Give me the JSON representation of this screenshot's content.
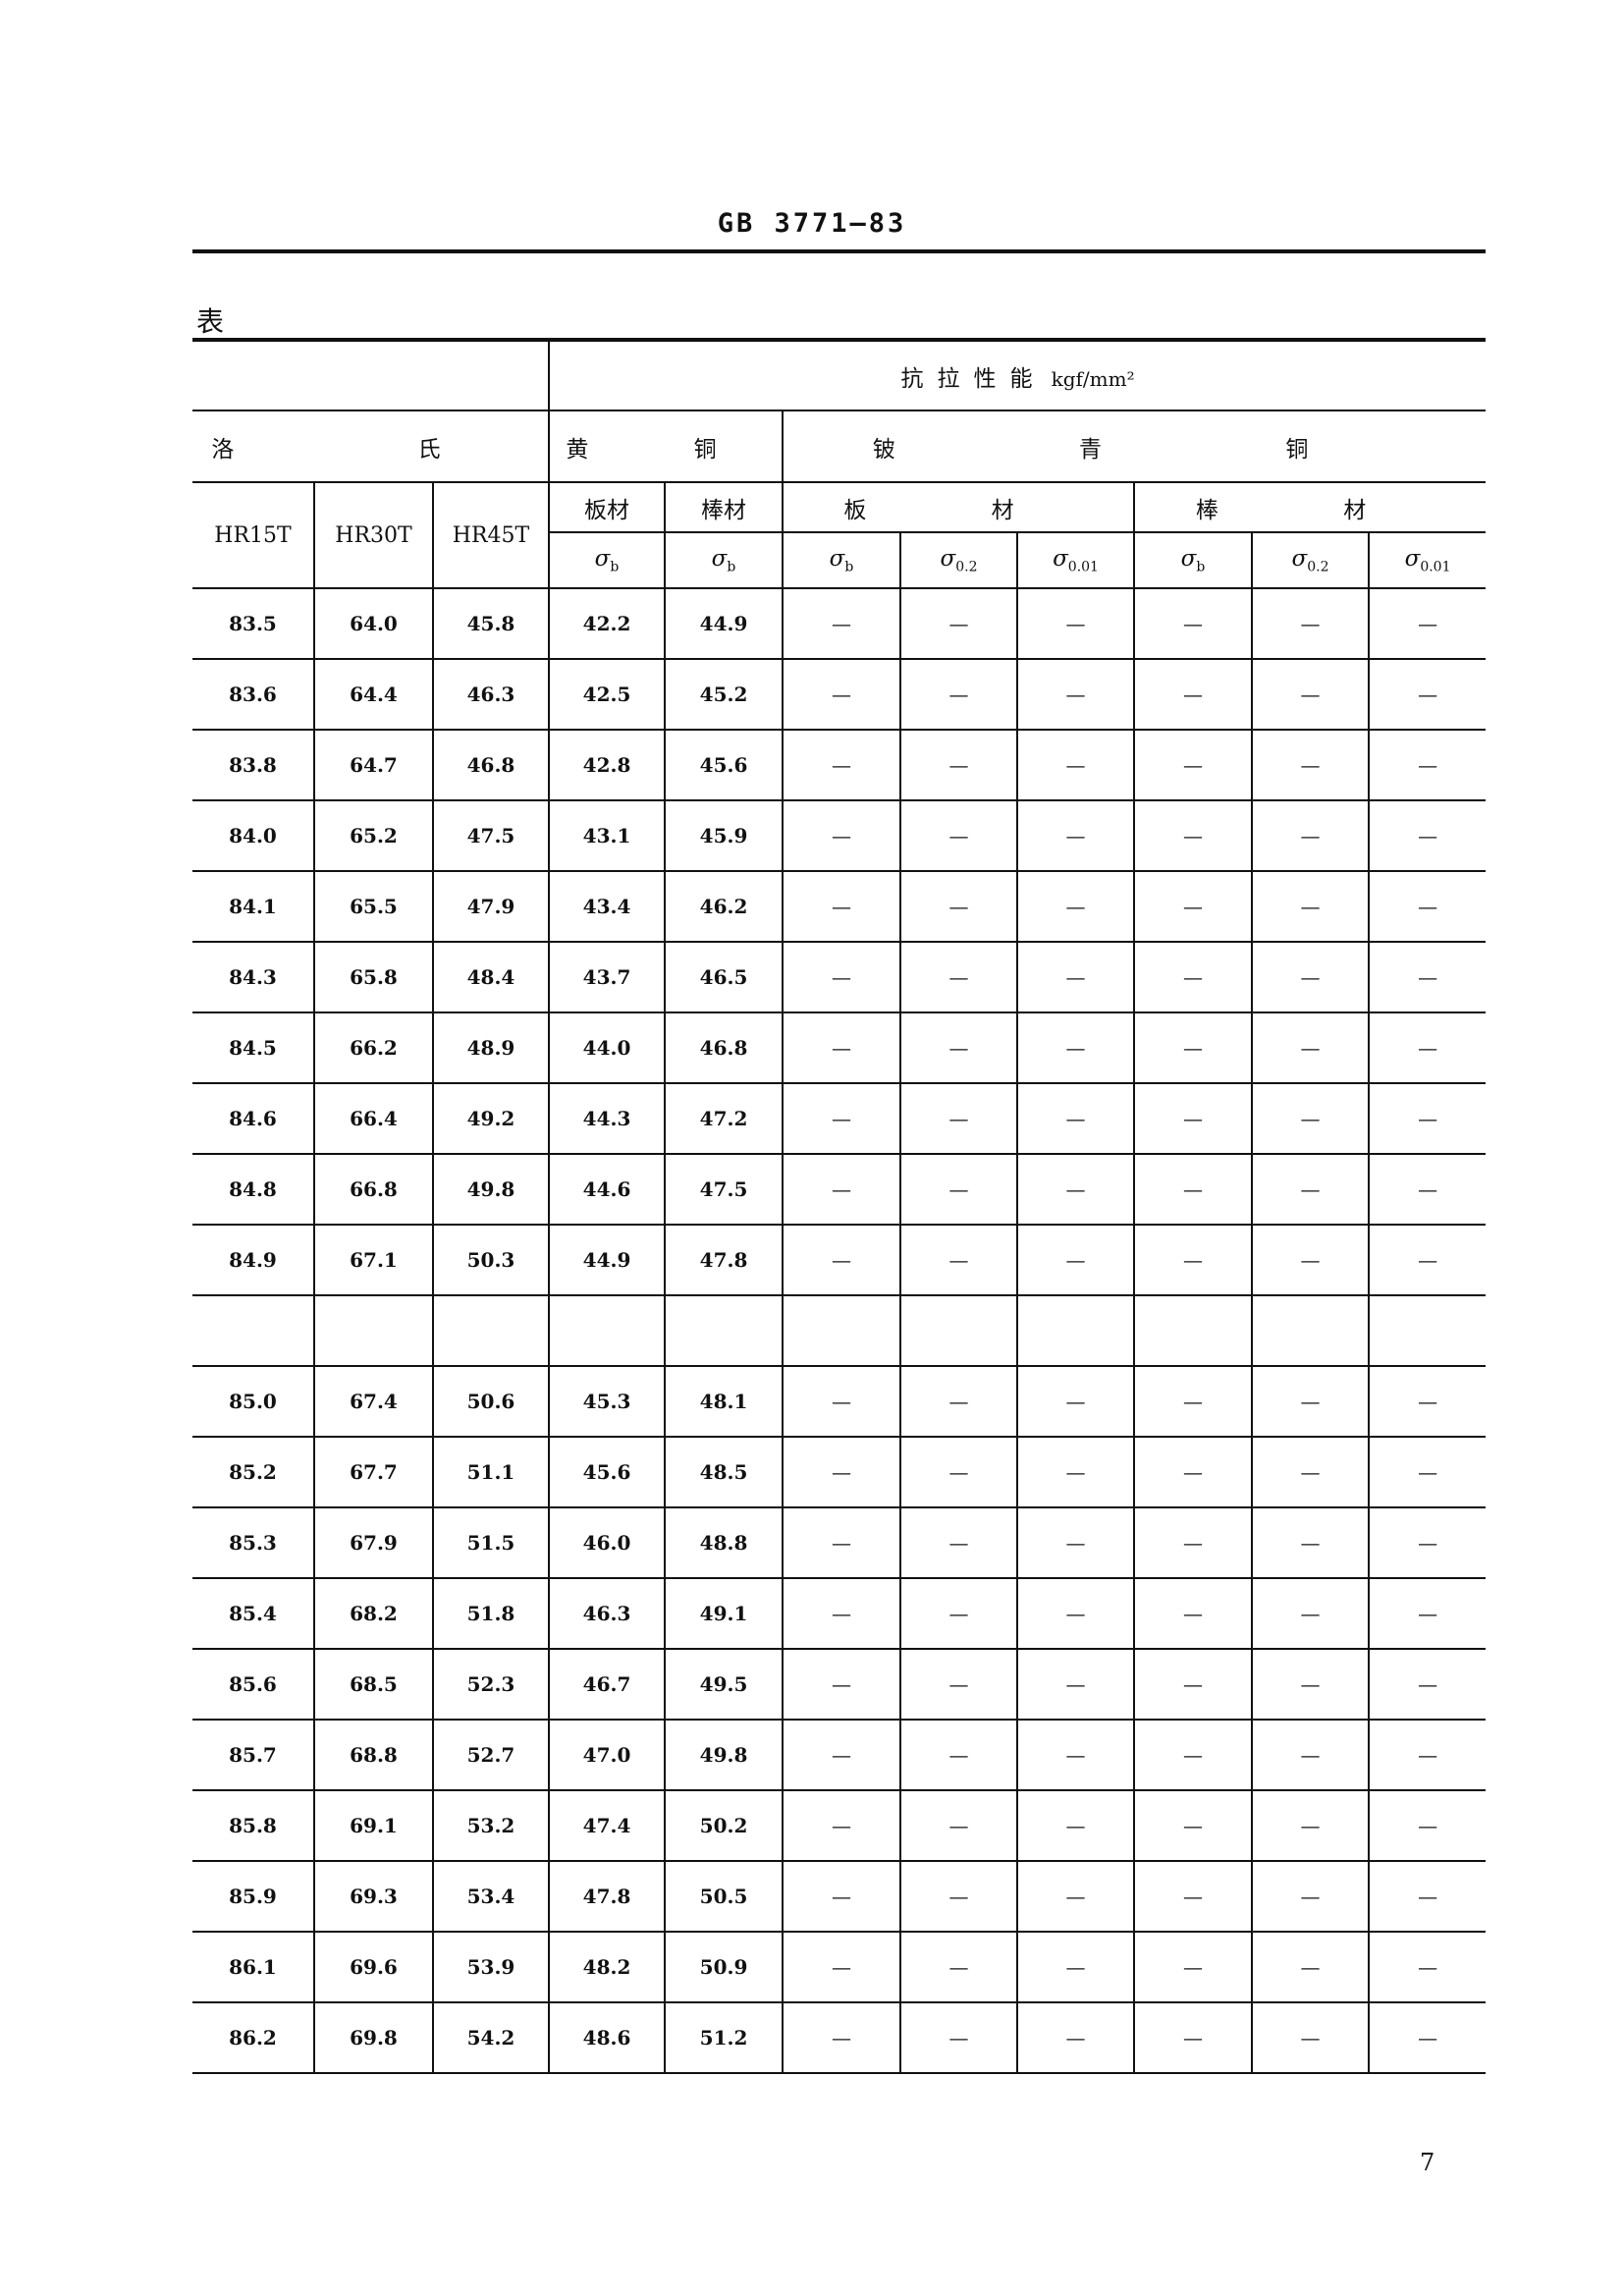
{
  "header": {
    "doc_code": "GB 3771—83",
    "table_label": "表",
    "page_number": "7"
  },
  "table": {
    "group_tensile": "抗拉性能",
    "group_tensile_unit": "kgf/mm²",
    "group_rockwell": "洛 氏",
    "group_brass": "黄 铜",
    "group_beryllium_bronze": "铍 青 铜",
    "rockwell_cols": [
      "HR15T",
      "HR30T",
      "HR45T"
    ],
    "brass_forms": [
      "板材",
      "棒材"
    ],
    "bronze_forms": [
      "板 材",
      "棒 材"
    ],
    "stress_cols": [
      {
        "sym": "σ",
        "sub": "b"
      },
      {
        "sym": "σ",
        "sub": "b"
      },
      {
        "sym": "σ",
        "sub": "b"
      },
      {
        "sym": "σ",
        "sub": "0.2"
      },
      {
        "sym": "σ",
        "sub": "0.01"
      },
      {
        "sym": "σ",
        "sub": "b"
      },
      {
        "sym": "σ",
        "sub": "0.2"
      },
      {
        "sym": "σ",
        "sub": "0.01"
      }
    ],
    "rows": [
      [
        "83.5",
        "64.0",
        "45.8",
        "42.2",
        "44.9",
        "—",
        "—",
        "—",
        "—",
        "—",
        "—"
      ],
      [
        "83.6",
        "64.4",
        "46.3",
        "42.5",
        "45.2",
        "—",
        "—",
        "—",
        "—",
        "—",
        "—"
      ],
      [
        "83.8",
        "64.7",
        "46.8",
        "42.8",
        "45.6",
        "—",
        "—",
        "—",
        "—",
        "—",
        "—"
      ],
      [
        "84.0",
        "65.2",
        "47.5",
        "43.1",
        "45.9",
        "—",
        "—",
        "—",
        "—",
        "—",
        "—"
      ],
      [
        "84.1",
        "65.5",
        "47.9",
        "43.4",
        "46.2",
        "—",
        "—",
        "—",
        "—",
        "—",
        "—"
      ],
      [
        "84.3",
        "65.8",
        "48.4",
        "43.7",
        "46.5",
        "—",
        "—",
        "—",
        "—",
        "—",
        "—"
      ],
      [
        "84.5",
        "66.2",
        "48.9",
        "44.0",
        "46.8",
        "—",
        "—",
        "—",
        "—",
        "—",
        "—"
      ],
      [
        "84.6",
        "66.4",
        "49.2",
        "44.3",
        "47.2",
        "—",
        "—",
        "—",
        "—",
        "—",
        "—"
      ],
      [
        "84.8",
        "66.8",
        "49.8",
        "44.6",
        "47.5",
        "—",
        "—",
        "—",
        "—",
        "—",
        "—"
      ],
      [
        "84.9",
        "67.1",
        "50.3",
        "44.9",
        "47.8",
        "—",
        "—",
        "—",
        "—",
        "—",
        "—"
      ],
      [
        "",
        "",
        "",
        "",
        "",
        "",
        "",
        "",
        "",
        "",
        ""
      ],
      [
        "85.0",
        "67.4",
        "50.6",
        "45.3",
        "48.1",
        "—",
        "—",
        "—",
        "—",
        "—",
        "—"
      ],
      [
        "85.2",
        "67.7",
        "51.1",
        "45.6",
        "48.5",
        "—",
        "—",
        "—",
        "—",
        "—",
        "—"
      ],
      [
        "85.3",
        "67.9",
        "51.5",
        "46.0",
        "48.8",
        "—",
        "—",
        "—",
        "—",
        "—",
        "—"
      ],
      [
        "85.4",
        "68.2",
        "51.8",
        "46.3",
        "49.1",
        "—",
        "—",
        "—",
        "—",
        "—",
        "—"
      ],
      [
        "85.6",
        "68.5",
        "52.3",
        "46.7",
        "49.5",
        "—",
        "—",
        "—",
        "—",
        "—",
        "—"
      ],
      [
        "85.7",
        "68.8",
        "52.7",
        "47.0",
        "49.8",
        "—",
        "—",
        "—",
        "—",
        "—",
        "—"
      ],
      [
        "85.8",
        "69.1",
        "53.2",
        "47.4",
        "50.2",
        "—",
        "—",
        "—",
        "—",
        "—",
        "—"
      ],
      [
        "85.9",
        "69.3",
        "53.4",
        "47.8",
        "50.5",
        "—",
        "—",
        "—",
        "—",
        "—",
        "—"
      ],
      [
        "86.1",
        "69.6",
        "53.9",
        "48.2",
        "50.9",
        "—",
        "—",
        "—",
        "—",
        "—",
        "—"
      ],
      [
        "86.2",
        "69.8",
        "54.2",
        "48.6",
        "51.2",
        "—",
        "—",
        "—",
        "—",
        "—",
        "—"
      ]
    ]
  }
}
